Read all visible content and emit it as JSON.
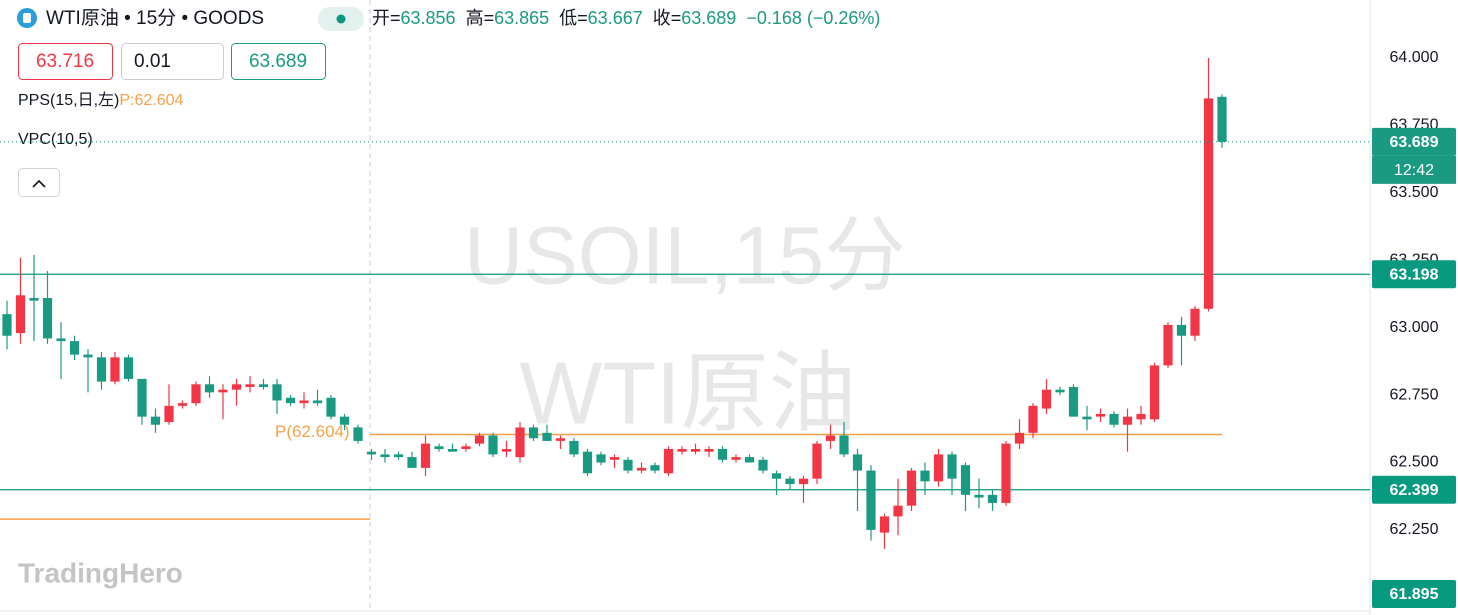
{
  "header": {
    "symbol": "WTI原油 • 15分 • GOODS",
    "ohlc_labels": [
      "开=",
      "高=",
      "低=",
      "收="
    ],
    "change": "−0.168 (−0.26%)"
  },
  "order_panel": {
    "sell": 63.716,
    "quantity": 0.01,
    "buy": 63.689
  },
  "indicators": {
    "pps": "PPS(15,日,左)",
    "pps_value": "P:62.604",
    "vpc": "VPC(10,5)"
  },
  "watermark": [
    "USOIL,15分",
    "WTI原油"
  ],
  "logo": "TradingHero",
  "chart_data": {
    "type": "candlestick",
    "up_color": "#f23645",
    "down_color": "#1a9a82",
    "ylim": [
      61.953,
      64.215
    ],
    "yticks": [
      {
        "value": 64,
        "label": "64.000"
      },
      {
        "value": 63.75,
        "label": "63.750"
      },
      {
        "value": 63.5,
        "label": "63.500"
      },
      {
        "value": 63.25,
        "label": "63.250"
      },
      {
        "value": 63,
        "label": "63.000"
      },
      {
        "value": 62.75,
        "label": "62.750"
      },
      {
        "value": 62.5,
        "label": "62.500"
      },
      {
        "value": 62.25,
        "label": "62.250"
      }
    ],
    "countdown": "12:42",
    "levels": [
      63.198,
      62.399
    ],
    "level_color": "#089981",
    "pps": {
      "value": 62.604,
      "label": "P(62.604)",
      "color": "#f7a047",
      "previous": 62.29
    },
    "low_marker": 61.895,
    "ohlc": [
      [
        63.05,
        63.1,
        62.92,
        62.97
      ],
      [
        62.98,
        63.26,
        62.94,
        63.12
      ],
      [
        63.11,
        63.27,
        62.95,
        63.1
      ],
      [
        63.11,
        63.21,
        62.94,
        62.96
      ],
      [
        62.96,
        63.02,
        62.81,
        62.95
      ],
      [
        62.95,
        62.97,
        62.88,
        62.9
      ],
      [
        62.9,
        62.92,
        62.76,
        62.89
      ],
      [
        62.89,
        62.91,
        62.77,
        62.8
      ],
      [
        62.8,
        62.91,
        62.79,
        62.89
      ],
      [
        62.89,
        62.9,
        62.8,
        62.81
      ],
      [
        62.81,
        62.81,
        62.64,
        62.67
      ],
      [
        62.67,
        62.7,
        62.61,
        62.64
      ],
      [
        62.65,
        62.79,
        62.64,
        62.71
      ],
      [
        62.71,
        62.73,
        62.7,
        62.72
      ],
      [
        62.72,
        62.8,
        62.71,
        62.79
      ],
      [
        62.79,
        62.82,
        62.74,
        62.76
      ],
      [
        62.76,
        62.79,
        62.66,
        62.77
      ],
      [
        62.77,
        62.81,
        62.71,
        62.79
      ],
      [
        62.78,
        62.82,
        62.76,
        62.79
      ],
      [
        62.79,
        62.81,
        62.77,
        62.78
      ],
      [
        62.79,
        62.81,
        62.68,
        62.73
      ],
      [
        62.74,
        62.75,
        62.71,
        62.72
      ],
      [
        62.72,
        62.76,
        62.7,
        62.73
      ],
      [
        62.73,
        62.77,
        62.71,
        62.72
      ],
      [
        62.74,
        62.75,
        62.66,
        62.67
      ],
      [
        62.67,
        62.68,
        62.62,
        62.64
      ],
      [
        62.63,
        62.64,
        62.57,
        62.58
      ],
      [
        62.54,
        62.55,
        62.51,
        62.53
      ],
      [
        62.53,
        62.55,
        62.5,
        62.52
      ],
      [
        62.53,
        62.54,
        62.51,
        62.52
      ],
      [
        62.52,
        62.54,
        62.48,
        62.48
      ],
      [
        62.48,
        62.6,
        62.45,
        62.57
      ],
      [
        62.56,
        62.57,
        62.54,
        62.55
      ],
      [
        62.55,
        62.57,
        62.54,
        62.54
      ],
      [
        62.55,
        62.57,
        62.54,
        62.56
      ],
      [
        62.57,
        62.61,
        62.56,
        62.6
      ],
      [
        62.6,
        62.61,
        62.52,
        62.53
      ],
      [
        62.54,
        62.58,
        62.52,
        62.55
      ],
      [
        62.52,
        62.65,
        62.5,
        62.63
      ],
      [
        62.63,
        62.64,
        62.58,
        62.59
      ],
      [
        62.61,
        62.64,
        62.58,
        62.58
      ],
      [
        62.58,
        62.6,
        62.55,
        62.59
      ],
      [
        62.58,
        62.59,
        62.52,
        62.53
      ],
      [
        62.54,
        62.55,
        62.45,
        62.46
      ],
      [
        62.53,
        62.54,
        62.49,
        62.5
      ],
      [
        62.51,
        62.53,
        62.48,
        62.52
      ],
      [
        62.51,
        62.52,
        62.46,
        62.47
      ],
      [
        62.47,
        62.5,
        62.46,
        62.48
      ],
      [
        62.49,
        62.5,
        62.46,
        62.47
      ],
      [
        62.46,
        62.56,
        62.45,
        62.55
      ],
      [
        62.54,
        62.56,
        62.53,
        62.55
      ],
      [
        62.54,
        62.57,
        62.53,
        62.55
      ],
      [
        62.54,
        62.56,
        62.52,
        62.55
      ],
      [
        62.55,
        62.56,
        62.5,
        62.51
      ],
      [
        62.51,
        62.53,
        62.5,
        62.52
      ],
      [
        62.52,
        62.53,
        62.5,
        62.5
      ],
      [
        62.51,
        62.52,
        62.46,
        62.47
      ],
      [
        62.46,
        62.47,
        62.38,
        62.44
      ],
      [
        62.44,
        62.45,
        62.4,
        62.42
      ],
      [
        62.42,
        62.45,
        62.35,
        62.44
      ],
      [
        62.44,
        62.58,
        62.42,
        62.57
      ],
      [
        62.58,
        62.64,
        62.55,
        62.6
      ],
      [
        62.6,
        62.65,
        62.52,
        62.53
      ],
      [
        62.53,
        62.55,
        62.32,
        62.47
      ],
      [
        62.47,
        62.49,
        62.21,
        62.25
      ],
      [
        62.24,
        62.31,
        62.18,
        62.3
      ],
      [
        62.3,
        62.44,
        62.23,
        62.34
      ],
      [
        62.34,
        62.48,
        62.32,
        62.47
      ],
      [
        62.47,
        62.5,
        62.38,
        62.43
      ],
      [
        62.43,
        62.55,
        62.41,
        62.53
      ],
      [
        62.53,
        62.54,
        62.38,
        62.44
      ],
      [
        62.49,
        62.5,
        62.32,
        62.38
      ],
      [
        62.38,
        62.44,
        62.33,
        62.37
      ],
      [
        62.38,
        62.4,
        62.32,
        62.35
      ],
      [
        62.35,
        62.58,
        62.34,
        62.57
      ],
      [
        62.57,
        62.66,
        62.55,
        62.61
      ],
      [
        62.61,
        62.72,
        62.59,
        62.71
      ],
      [
        62.7,
        62.81,
        62.68,
        62.77
      ],
      [
        62.77,
        62.78,
        62.75,
        62.76
      ],
      [
        62.78,
        62.79,
        62.67,
        62.67
      ],
      [
        62.67,
        62.71,
        62.62,
        62.66
      ],
      [
        62.67,
        62.7,
        62.65,
        62.68
      ],
      [
        62.68,
        62.69,
        62.63,
        62.64
      ],
      [
        62.64,
        62.7,
        62.54,
        62.67
      ],
      [
        62.66,
        62.71,
        62.64,
        62.68
      ],
      [
        62.66,
        62.87,
        62.65,
        62.86
      ],
      [
        62.86,
        63.02,
        62.85,
        63.01
      ],
      [
        63.01,
        63.04,
        62.86,
        62.97
      ],
      [
        62.97,
        63.08,
        62.95,
        63.07
      ],
      [
        63.07,
        64.0,
        63.06,
        63.85
      ],
      [
        63.856,
        63.865,
        63.667,
        63.689
      ]
    ]
  }
}
